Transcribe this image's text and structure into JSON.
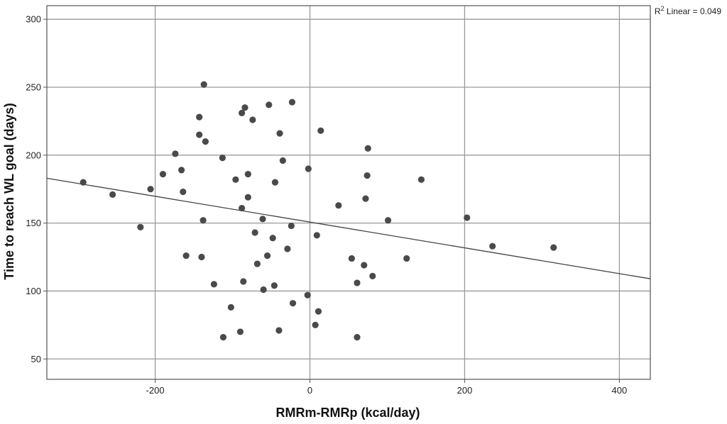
{
  "chart_data": {
    "type": "scatter",
    "xlabel": "RMRm-RMRp (kcal/day)",
    "ylabel": "Time to reach WL goal (days)",
    "xlim": [
      -340,
      440
    ],
    "ylim": [
      35,
      310
    ],
    "xticks": [
      -200,
      0,
      200,
      400
    ],
    "yticks": [
      50,
      100,
      150,
      200,
      250,
      300
    ],
    "xtick_labels": [
      "-200",
      "0",
      "200",
      "400"
    ],
    "ytick_labels": [
      "50",
      "100",
      "150",
      "200",
      "250",
      "300"
    ],
    "grid": true,
    "annotation": {
      "prefix": "R",
      "superscript": "2",
      "text": " Linear = 0.049"
    },
    "fit_line": {
      "type": "linear",
      "x": [
        -340,
        440
      ],
      "y": [
        183,
        109
      ]
    },
    "point_color": "#4a4a4a",
    "points": [
      {
        "x": -293,
        "y": 180
      },
      {
        "x": -255,
        "y": 171
      },
      {
        "x": -219,
        "y": 147
      },
      {
        "x": -206,
        "y": 175
      },
      {
        "x": -190,
        "y": 186
      },
      {
        "x": -174,
        "y": 201
      },
      {
        "x": -166,
        "y": 189
      },
      {
        "x": -164,
        "y": 173
      },
      {
        "x": -160,
        "y": 126
      },
      {
        "x": -143,
        "y": 228
      },
      {
        "x": -143,
        "y": 215
      },
      {
        "x": -140,
        "y": 125
      },
      {
        "x": -138,
        "y": 152
      },
      {
        "x": -135,
        "y": 210
      },
      {
        "x": -137,
        "y": 252
      },
      {
        "x": -124,
        "y": 105
      },
      {
        "x": -113,
        "y": 198
      },
      {
        "x": -112,
        "y": 66
      },
      {
        "x": -102,
        "y": 88
      },
      {
        "x": -96,
        "y": 182
      },
      {
        "x": -90,
        "y": 70
      },
      {
        "x": -88,
        "y": 161
      },
      {
        "x": -88,
        "y": 231
      },
      {
        "x": -86,
        "y": 107
      },
      {
        "x": -84,
        "y": 235
      },
      {
        "x": -80,
        "y": 169
      },
      {
        "x": -80,
        "y": 186
      },
      {
        "x": -74,
        "y": 226
      },
      {
        "x": -71,
        "y": 143
      },
      {
        "x": -68,
        "y": 120
      },
      {
        "x": -61,
        "y": 153
      },
      {
        "x": -60,
        "y": 101
      },
      {
        "x": -55,
        "y": 126
      },
      {
        "x": -53,
        "y": 237
      },
      {
        "x": -48,
        "y": 139
      },
      {
        "x": -46,
        "y": 104
      },
      {
        "x": -45,
        "y": 180
      },
      {
        "x": -40,
        "y": 71
      },
      {
        "x": -39,
        "y": 216
      },
      {
        "x": -35,
        "y": 196
      },
      {
        "x": -29,
        "y": 131
      },
      {
        "x": -24,
        "y": 148
      },
      {
        "x": -23,
        "y": 239
      },
      {
        "x": -22,
        "y": 91
      },
      {
        "x": -3,
        "y": 97
      },
      {
        "x": -2,
        "y": 190
      },
      {
        "x": 7,
        "y": 75
      },
      {
        "x": 9,
        "y": 141
      },
      {
        "x": 11,
        "y": 85
      },
      {
        "x": 14,
        "y": 218
      },
      {
        "x": 37,
        "y": 163
      },
      {
        "x": 54,
        "y": 124
      },
      {
        "x": 61,
        "y": 106
      },
      {
        "x": 61,
        "y": 66
      },
      {
        "x": 70,
        "y": 119
      },
      {
        "x": 72,
        "y": 168
      },
      {
        "x": 74,
        "y": 185
      },
      {
        "x": 75,
        "y": 205
      },
      {
        "x": 81,
        "y": 111
      },
      {
        "x": 101,
        "y": 152
      },
      {
        "x": 125,
        "y": 124
      },
      {
        "x": 144,
        "y": 182
      },
      {
        "x": 203,
        "y": 154
      },
      {
        "x": 236,
        "y": 133
      },
      {
        "x": 315,
        "y": 132
      }
    ]
  }
}
